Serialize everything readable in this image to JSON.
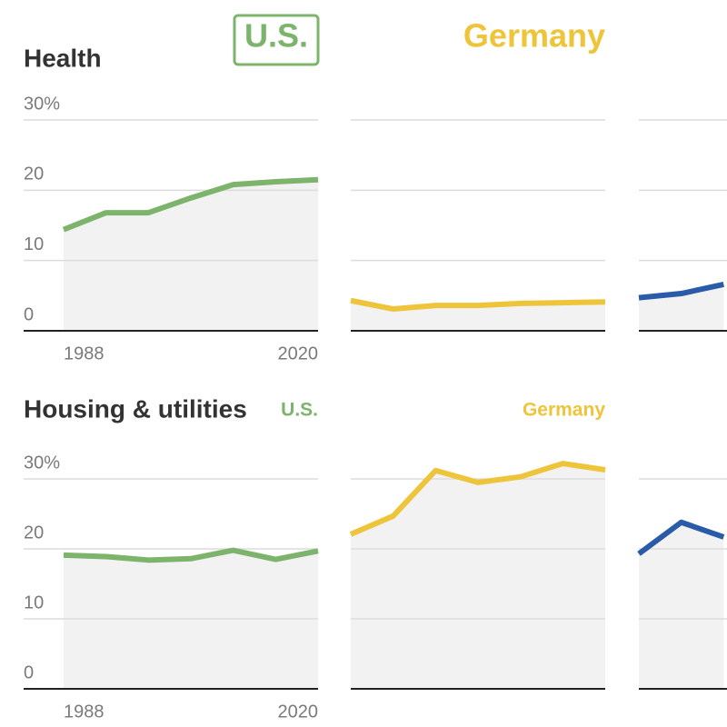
{
  "chart_data": [
    {
      "type": "line",
      "title": "Health",
      "categories": [
        "1988",
        null,
        null,
        null,
        null,
        null,
        "2020"
      ],
      "ylim": [
        0,
        30
      ],
      "yticks": [
        0,
        10,
        20,
        {
          "value": 30,
          "label": "30%"
        }
      ],
      "grid": true,
      "series": [
        {
          "name": "U.S.",
          "color": "#7db46c",
          "values": [
            14.4,
            16.8,
            16.8,
            18.9,
            20.8,
            21.2,
            21.5
          ]
        },
        {
          "name": "Germany",
          "color": "#eec53a",
          "values": [
            4.3,
            3.1,
            3.6,
            3.6,
            3.9,
            4.0,
            4.1
          ]
        },
        {
          "color": "#2a5ba8",
          "values": [
            4.7,
            5.3,
            6.6,
            null,
            null,
            null,
            null
          ]
        }
      ]
    },
    {
      "type": "line",
      "title": "Housing & utilities",
      "categories": [
        "1988",
        null,
        null,
        null,
        null,
        null,
        "2020"
      ],
      "ylim": [
        0,
        30
      ],
      "yticks": [
        0,
        10,
        20,
        {
          "value": 30,
          "label": "30%"
        }
      ],
      "grid": true,
      "series": [
        {
          "name": "U.S.",
          "color": "#7db46c",
          "values": [
            19.1,
            18.9,
            18.4,
            18.6,
            19.8,
            18.5,
            19.7
          ]
        },
        {
          "name": "Germany",
          "color": "#eec53a",
          "values": [
            22.1,
            24.7,
            31.2,
            29.5,
            30.3,
            32.2,
            31.3
          ]
        },
        {
          "color": "#2a5ba8",
          "values": [
            19.3,
            23.8,
            21.7,
            null,
            null,
            null,
            null
          ]
        }
      ]
    }
  ]
}
